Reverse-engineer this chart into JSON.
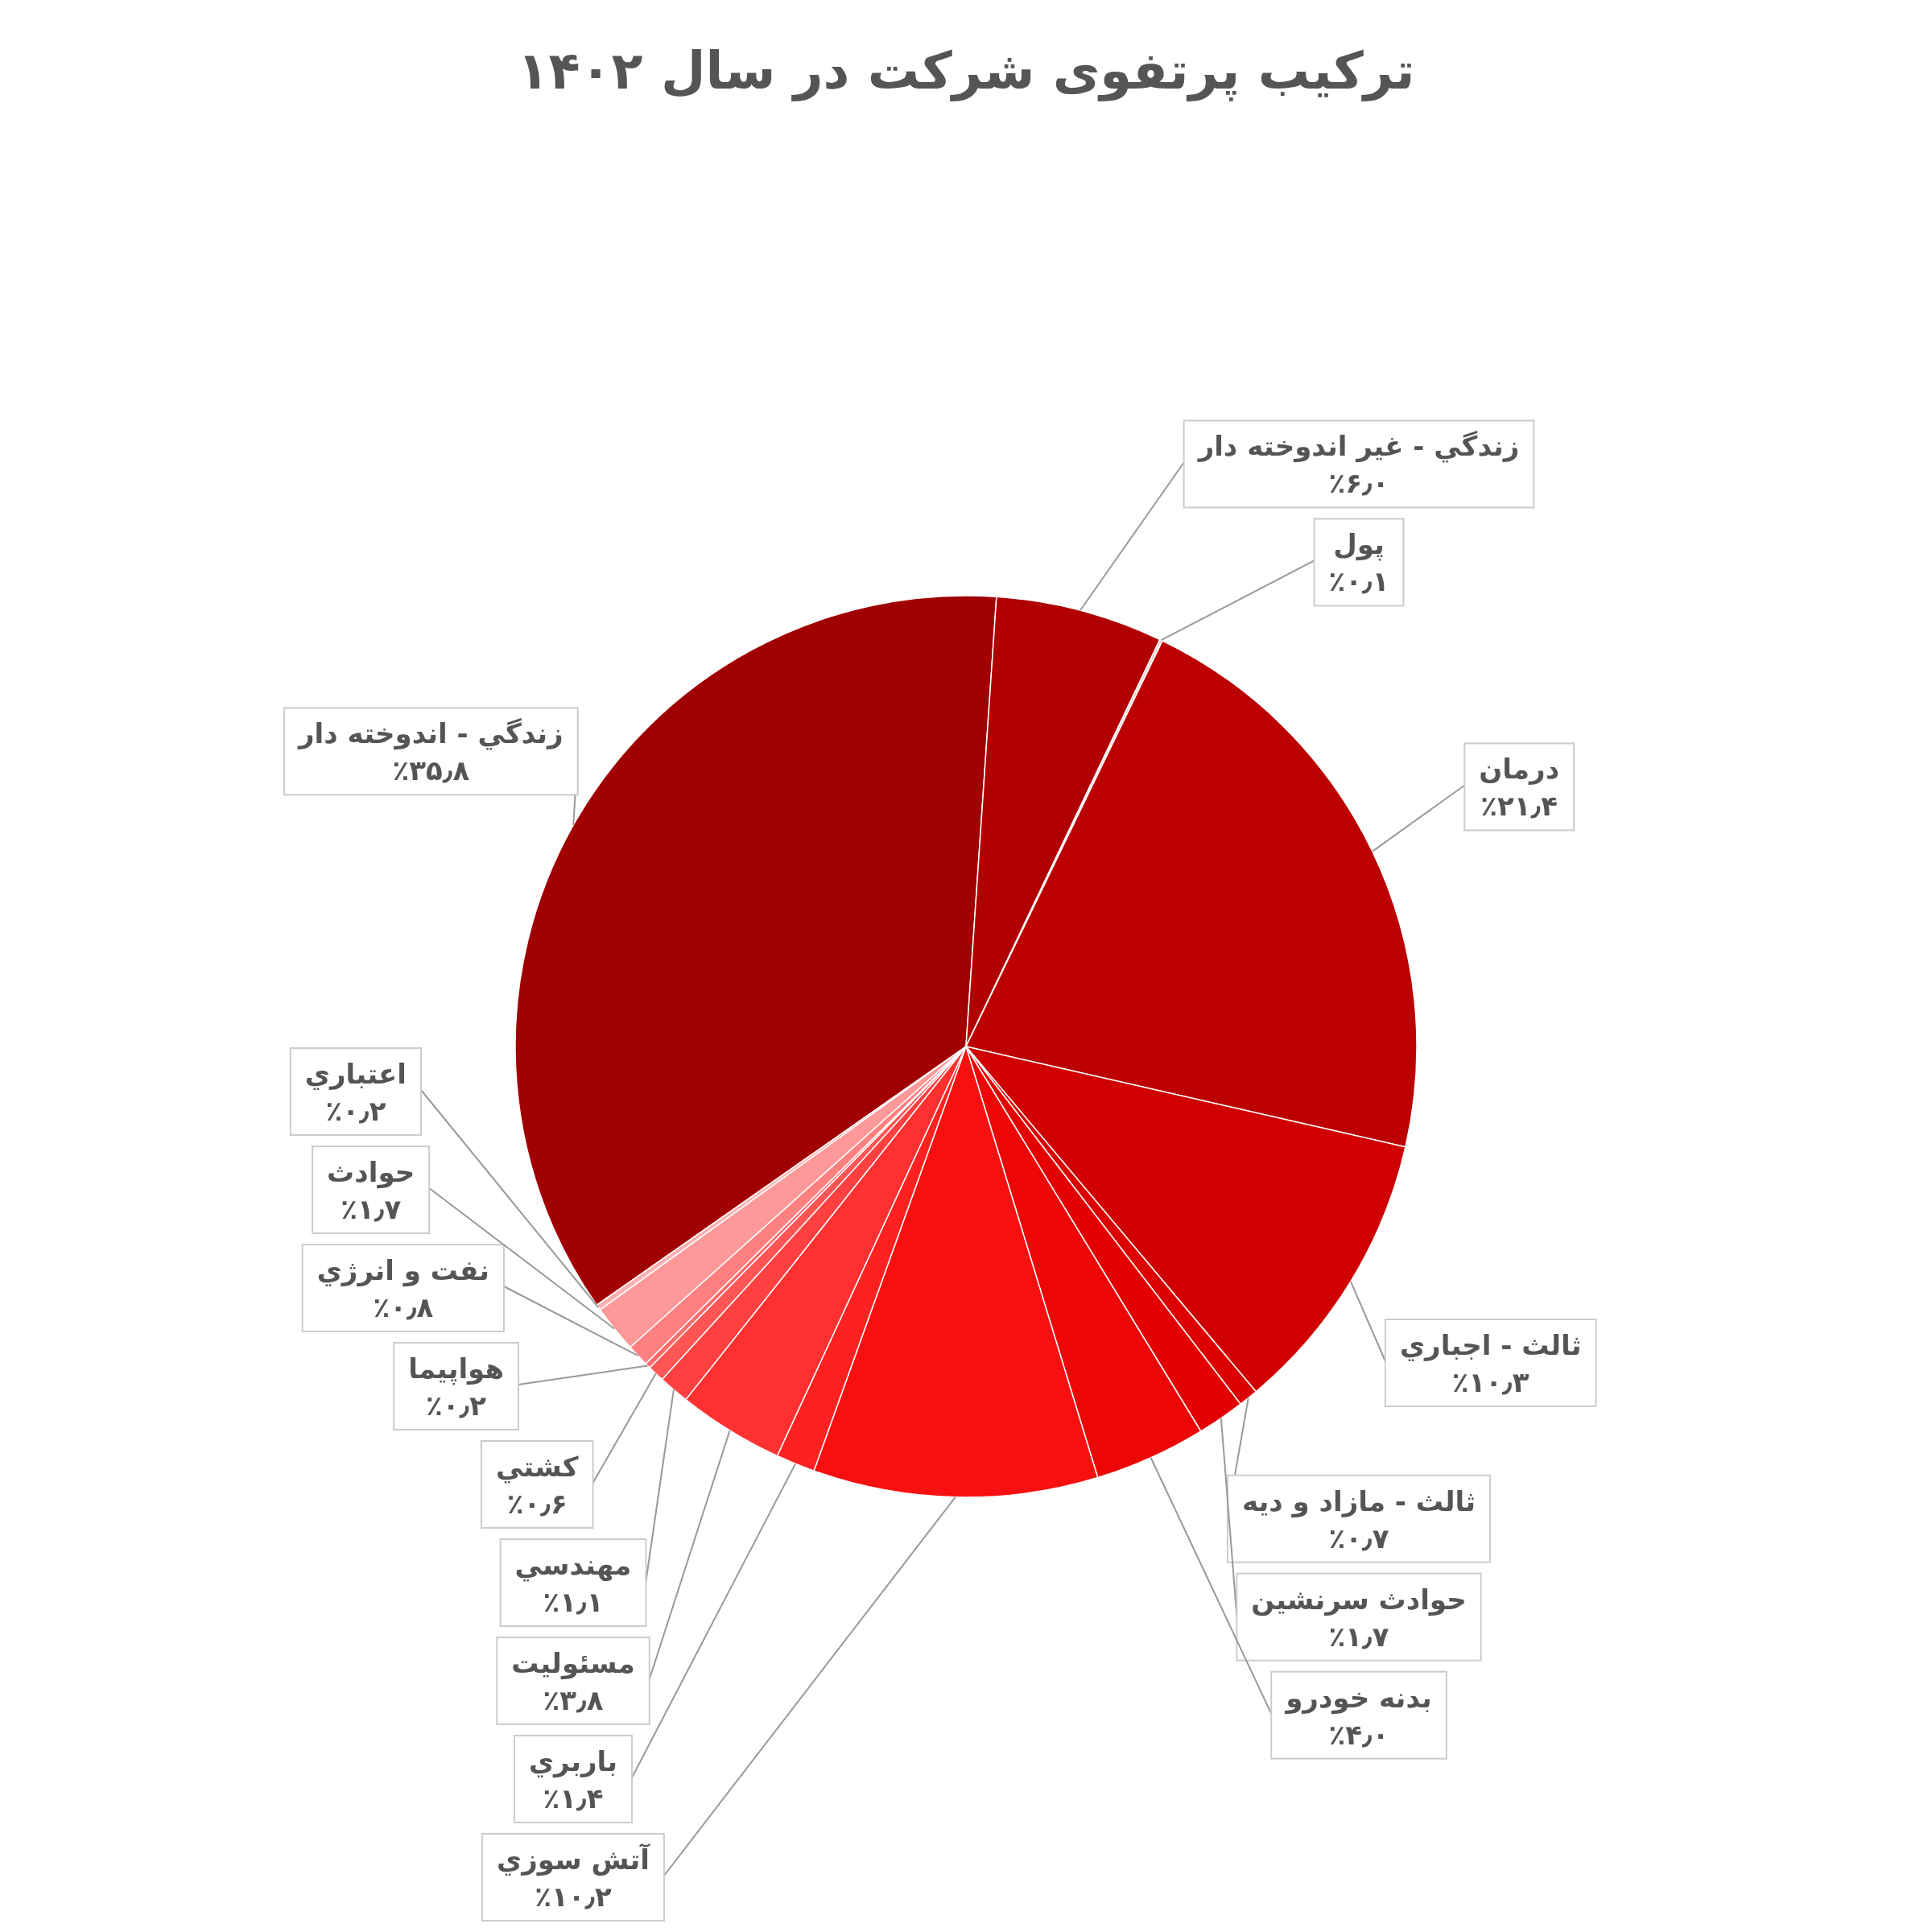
{
  "chart_data": {
    "type": "pie",
    "title": "ترکیب پرتفوی شرکت در سال ۱۴۰۲",
    "categories": [
      "زندگي - اندوخته دار",
      "زندگي - غير اندوخته دار",
      "پول",
      "درمان",
      "ثالث - اجباري",
      "ثالث - مازاد و ديه",
      "حوادث سرنشين",
      "بدنه خودرو",
      "آتش سوزي",
      "باربري",
      "مسئوليت",
      "مهندسي",
      "كشتي",
      "هواپيما",
      "نفت و انرژي",
      "حوادث",
      "اعتباري"
    ],
    "values": [
      35.8,
      6.0,
      0.1,
      21.4,
      10.3,
      0.7,
      1.7,
      4.0,
      10.2,
      1.4,
      3.8,
      1.1,
      0.6,
      0.2,
      0.8,
      1.7,
      0.2
    ],
    "value_labels": [
      "٪۳۵٫۸",
      "٪۶٫۰",
      "٪۰٫۱",
      "٪۲۱٫۴",
      "٪۱۰٫۳",
      "٪۰٫۷",
      "٪۱٫۷",
      "٪۴٫۰",
      "٪۱۰٫۲",
      "٪۱٫۴",
      "٪۳٫۸",
      "٪۱٫۱",
      "٪۰٫۶",
      "٪۰٫۲",
      "٪۰٫۸",
      "٪۱٫۷",
      "٪۰٫۲"
    ],
    "colors": [
      "#a00000",
      "#b00000",
      "#f0d0d0",
      "#bc0000",
      "#d00000",
      "#dc0000",
      "#e40000",
      "#ec0606",
      "#f81010",
      "#ff2020",
      "#ff3030",
      "#ff4040",
      "#ff5555",
      "#ff6a6a",
      "#ff8080",
      "#ff9898",
      "#ffb0b0"
    ],
    "legend": false
  }
}
